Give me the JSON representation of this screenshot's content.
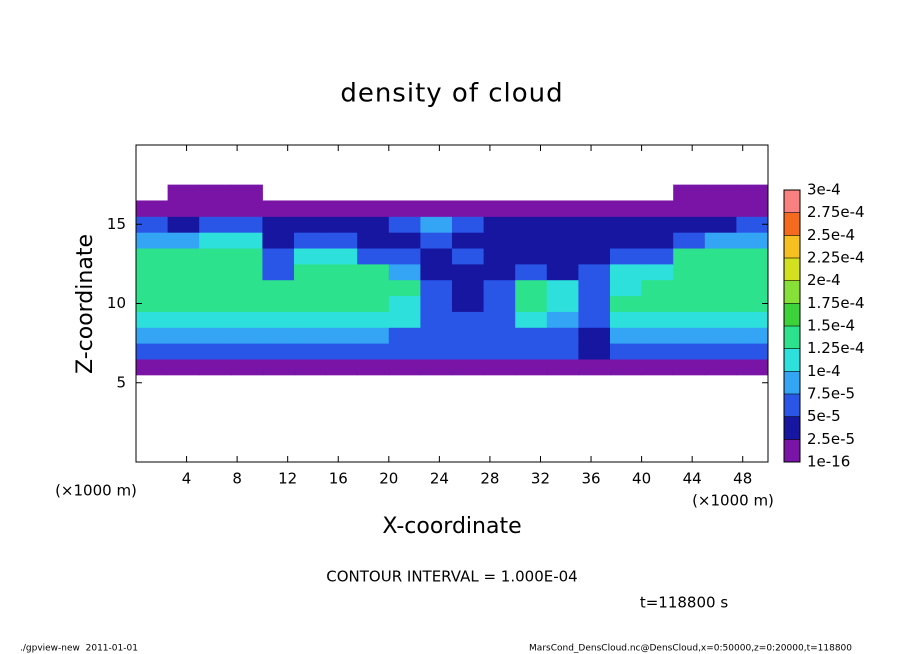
{
  "chart_data": {
    "type": "heatmap",
    "title": "density of cloud",
    "xlabel": "X-coordinate",
    "ylabel": "Z-coordinate",
    "xunit": "(×1000 m)",
    "yunit": "(×1000 m)",
    "annotations": [
      "CONTOUR INTERVAL = 1.000E-04",
      "t=118800 s"
    ],
    "footer_left": "./gpview-new  2011-01-01",
    "footer_right": "MarsCond_DensCloud.nc@DensCloud,x=0:50000,z=0:20000,t=118800",
    "xlim": [
      0,
      50
    ],
    "ylim": [
      0,
      20
    ],
    "xticks": [
      4,
      8,
      12,
      16,
      20,
      24,
      28,
      32,
      36,
      40,
      44,
      48
    ],
    "yticks": [
      5,
      10,
      15
    ],
    "xbins": [
      0,
      2.5,
      5,
      7.5,
      10,
      12.5,
      15,
      17.5,
      20,
      22.5,
      25,
      27.5,
      30,
      32.5,
      35,
      37.5,
      40,
      42.5,
      45,
      47.5,
      50
    ],
    "ybins": [
      5.5,
      6.5,
      7.5,
      8.5,
      9.5,
      10.5,
      11.5,
      12.5,
      13.5,
      14.5,
      15.5,
      16.5,
      17.5
    ],
    "values": [
      [
        2e-05,
        2e-05,
        2e-05,
        2e-05,
        2e-05,
        2e-05,
        2e-05,
        2e-05,
        2e-05,
        2e-05,
        2e-05,
        2e-05,
        2e-05,
        2e-05,
        1e-05,
        2e-05,
        2e-05,
        2e-05,
        2e-05,
        2e-05
      ],
      [
        6e-05,
        6e-05,
        6e-05,
        6e-05,
        6e-05,
        6e-05,
        6e-05,
        6e-05,
        6e-05,
        6e-05,
        6e-05,
        6e-05,
        6e-05,
        6e-05,
        3e-05,
        6e-05,
        6e-05,
        6e-05,
        6e-05,
        6e-05
      ],
      [
        9e-05,
        9e-05,
        9e-05,
        9e-05,
        8e-05,
        8e-05,
        9e-05,
        9e-05,
        7e-05,
        5e-05,
        5e-05,
        6e-05,
        6e-05,
        5e-05,
        4e-05,
        9e-05,
        9e-05,
        9e-05,
        9e-05,
        9e-05
      ],
      [
        0.00012,
        0.00012,
        0.00012,
        0.00012,
        0.00011,
        0.00012,
        0.00012,
        0.00012,
        0.0001,
        6e-05,
        6e-05,
        7e-05,
        0.00011,
        8e-05,
        5e-05,
        0.00011,
        0.00012,
        0.00012,
        0.00012,
        0.00012
      ],
      [
        0.000135,
        0.000135,
        0.000135,
        0.00013,
        0.00013,
        0.000135,
        0.000135,
        0.000135,
        0.00012,
        5e-05,
        4e-05,
        6e-05,
        0.00013,
        0.00012,
        6e-05,
        0.00013,
        0.000135,
        0.000135,
        0.000135,
        0.000135
      ],
      [
        0.00014,
        0.00014,
        0.00014,
        0.00014,
        0.00013,
        0.00014,
        0.00014,
        0.00014,
        0.00013,
        5e-05,
        4e-05,
        5e-05,
        0.00013,
        0.00011,
        7e-05,
        0.0001,
        0.00014,
        0.00014,
        0.00014,
        0.00014
      ],
      [
        0.00014,
        0.000145,
        0.000145,
        0.00014,
        6e-05,
        0.00014,
        0.000145,
        0.00014,
        9e-05,
        4e-05,
        4e-05,
        4e-05,
        5e-05,
        4e-05,
        6e-05,
        0.0001,
        0.00012,
        0.00014,
        0.000145,
        0.00014
      ],
      [
        0.00013,
        0.00013,
        0.00014,
        0.00014,
        5e-05,
        0.00011,
        0.0001,
        7e-05,
        5e-05,
        4e-05,
        5e-05,
        4e-05,
        4e-05,
        4e-05,
        4e-05,
        5e-05,
        7e-05,
        0.00013,
        0.00014,
        0.00013
      ],
      [
        9e-05,
        8e-05,
        0.00012,
        0.00012,
        4e-05,
        6e-05,
        5e-05,
        4e-05,
        4e-05,
        6e-05,
        4e-05,
        4e-05,
        4e-05,
        4e-05,
        4e-05,
        4e-05,
        4e-05,
        6e-05,
        9e-05,
        9e-05
      ],
      [
        5e-05,
        4e-05,
        6e-05,
        5e-05,
        4e-05,
        4e-05,
        3e-05,
        3e-05,
        6e-05,
        9e-05,
        7e-05,
        4e-05,
        3e-05,
        3e-05,
        3e-05,
        3e-05,
        3e-05,
        3e-05,
        4e-05,
        5e-05
      ],
      [
        2e-05,
        2e-05,
        2e-05,
        2e-05,
        2e-05,
        2e-05,
        2e-05,
        2e-05,
        2e-05,
        2e-05,
        2e-05,
        2e-05,
        2e-05,
        2e-05,
        2e-05,
        2e-05,
        2e-05,
        2e-05,
        2e-05,
        2e-05
      ],
      [
        null,
        1e-05,
        1e-05,
        1e-05,
        null,
        null,
        null,
        null,
        null,
        null,
        null,
        null,
        null,
        null,
        null,
        null,
        null,
        1e-05,
        1e-05,
        1e-05
      ]
    ],
    "colorbar": {
      "ticks": [
        {
          "value": 1e-16,
          "label": "1e-16"
        },
        {
          "value": 2.5e-05,
          "label": "2.5e-5"
        },
        {
          "value": 5e-05,
          "label": "5e-5"
        },
        {
          "value": 7.5e-05,
          "label": "7.5e-5"
        },
        {
          "value": 0.0001,
          "label": "1e-4"
        },
        {
          "value": 0.000125,
          "label": "1.25e-4"
        },
        {
          "value": 0.00015,
          "label": "1.5e-4"
        },
        {
          "value": 0.000175,
          "label": "1.75e-4"
        },
        {
          "value": 0.0002,
          "label": "2e-4"
        },
        {
          "value": 0.000225,
          "label": "2.25e-4"
        },
        {
          "value": 0.00025,
          "label": "2.5e-4"
        },
        {
          "value": 0.000275,
          "label": "2.75e-4"
        },
        {
          "value": 0.0003,
          "label": "3e-4"
        }
      ],
      "colors": [
        "#7a14a6",
        "#1616a0",
        "#2a56e8",
        "#34a4f4",
        "#2ee0dc",
        "#2ce28c",
        "#3ed23a",
        "#86e038",
        "#d2e020",
        "#f6c020",
        "#f46a1e",
        "#f8807e"
      ]
    }
  }
}
